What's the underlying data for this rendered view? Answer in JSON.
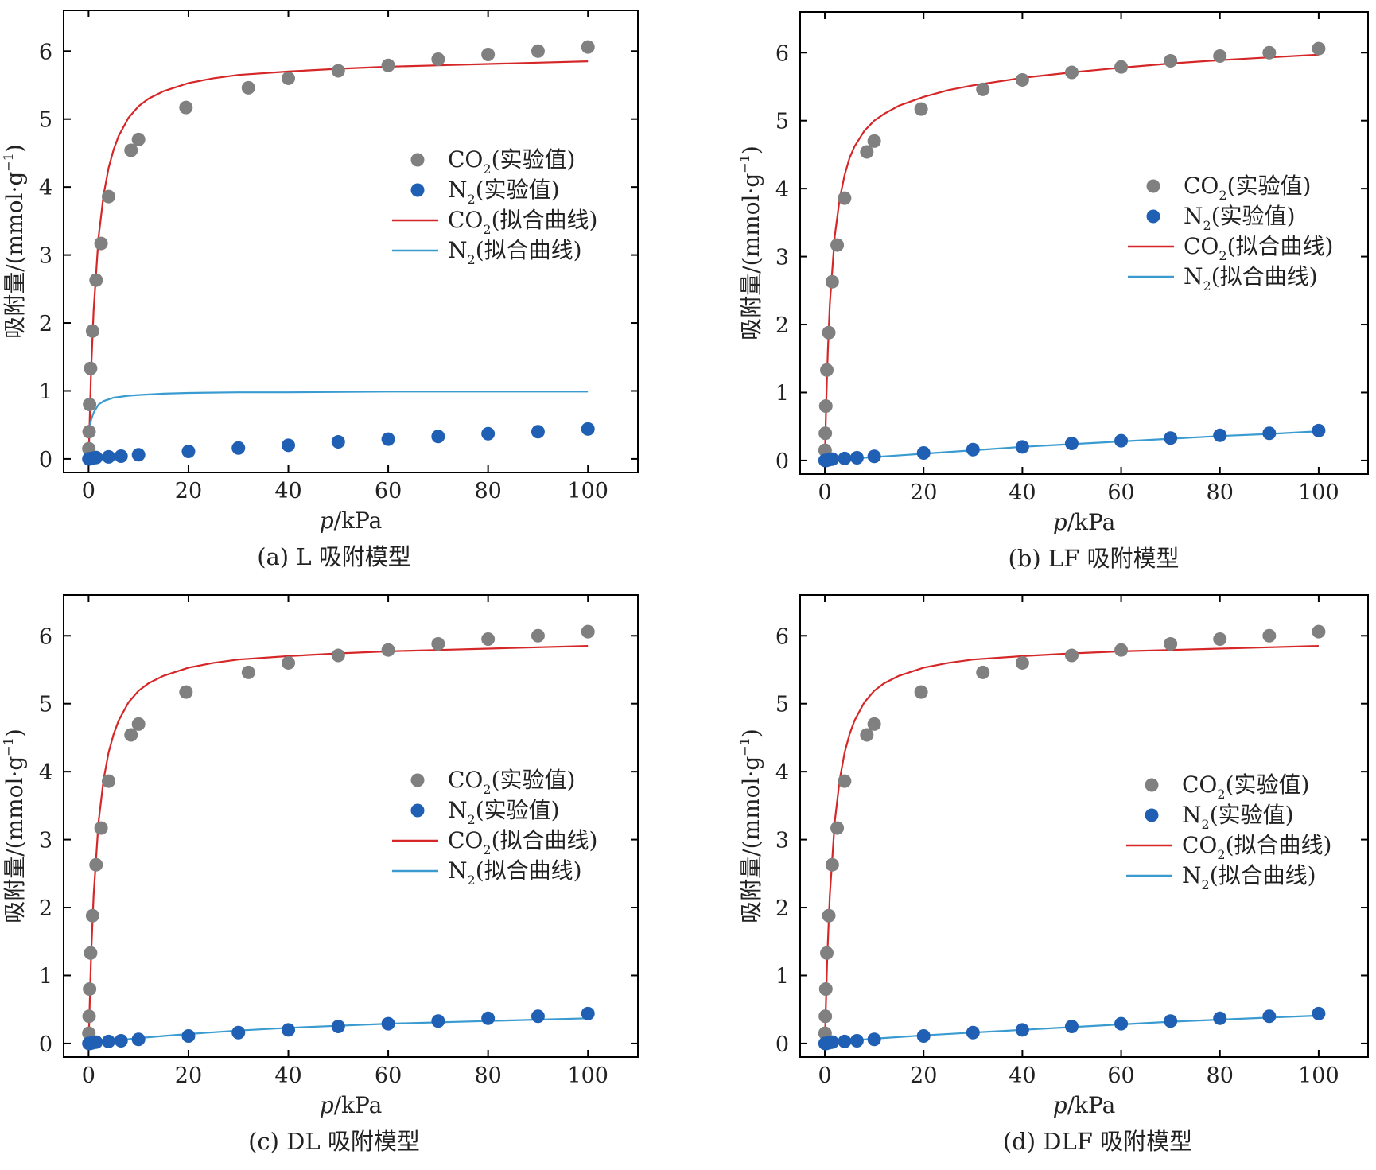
{
  "colors": {
    "co2_points": "#808080",
    "n2_points": "#1f5fb4",
    "co2_fit": "#d62728",
    "n2_fit": "#3a9bd0",
    "axis": "#000000"
  },
  "chart_data": [
    {
      "id": "a",
      "type": "scatter",
      "caption": "(a) L 吸附模型",
      "xlabel_italic": "p",
      "xlabel_unit": "/kPa",
      "ylabel": "吸附量/(mmol·g",
      "ylabel_sup": "−1",
      "ylabel_close": ")",
      "xlim": [
        -5,
        110
      ],
      "ylim": [
        -0.2,
        6.6
      ],
      "xticks": [
        0,
        20,
        40,
        60,
        80,
        100
      ],
      "yticks": [
        0,
        1,
        2,
        3,
        4,
        5,
        6
      ],
      "legend_position": "center-right",
      "series": [
        {
          "name": "CO",
          "sub": "2",
          "suffix": "(实验值)",
          "kind": "points",
          "color_key": "co2_points",
          "x": [
            0.05,
            0.1,
            0.2,
            0.4,
            0.8,
            1.5,
            2.5,
            4,
            8.5,
            10,
            19.5,
            32,
            40,
            50,
            60,
            70,
            80,
            90,
            100
          ],
          "y": [
            0.15,
            0.4,
            0.8,
            1.33,
            1.88,
            2.63,
            3.17,
            3.86,
            4.54,
            4.7,
            5.17,
            5.46,
            5.6,
            5.71,
            5.79,
            5.88,
            5.95,
            6.0,
            6.06
          ]
        },
        {
          "name": "N",
          "sub": "2",
          "suffix": "(实验值)",
          "kind": "points",
          "color_key": "n2_points",
          "x": [
            0.05,
            0.3,
            0.8,
            1.5,
            4,
            6.5,
            10,
            20,
            30,
            40,
            50,
            60,
            70,
            80,
            90,
            100
          ],
          "y": [
            0.0,
            0.0,
            0.01,
            0.02,
            0.03,
            0.04,
            0.06,
            0.11,
            0.16,
            0.2,
            0.25,
            0.29,
            0.33,
            0.37,
            0.4,
            0.44
          ]
        },
        {
          "name": "CO",
          "sub": "2",
          "suffix": "(拟合曲线)",
          "kind": "line",
          "color_key": "co2_fit",
          "x": [
            0,
            0.5,
            1,
            2,
            3,
            4,
            5,
            6,
            8,
            10,
            12,
            15,
            20,
            25,
            30,
            40,
            50,
            60,
            70,
            80,
            90,
            100
          ],
          "y": [
            0,
            1.28,
            2.18,
            3.26,
            3.88,
            4.28,
            4.55,
            4.75,
            5.02,
            5.19,
            5.3,
            5.41,
            5.53,
            5.6,
            5.65,
            5.7,
            5.74,
            5.77,
            5.79,
            5.81,
            5.83,
            5.85
          ]
        },
        {
          "name": "N",
          "sub": "2",
          "suffix": "(拟合曲线)",
          "kind": "line",
          "color_key": "n2_fit",
          "x": [
            0.05,
            0.2,
            0.5,
            1,
            2,
            3,
            5,
            8,
            10,
            15,
            20,
            30,
            40,
            60,
            80,
            100
          ],
          "y": [
            0.36,
            0.45,
            0.57,
            0.68,
            0.8,
            0.85,
            0.9,
            0.93,
            0.94,
            0.96,
            0.97,
            0.98,
            0.98,
            0.99,
            0.99,
            0.99
          ]
        }
      ]
    },
    {
      "id": "b",
      "type": "scatter",
      "caption": "(b) LF 吸附模型",
      "xlabel_italic": "p",
      "xlabel_unit": "/kPa",
      "ylabel": "吸附量/(mmol·g",
      "ylabel_sup": "−1",
      "ylabel_close": ")",
      "xlim": [
        -5,
        110
      ],
      "ylim": [
        -0.2,
        6.6
      ],
      "xticks": [
        0,
        20,
        40,
        60,
        80,
        100
      ],
      "yticks": [
        0,
        1,
        2,
        3,
        4,
        5,
        6
      ],
      "legend_position": "center-right",
      "series": [
        {
          "name": "CO",
          "sub": "2",
          "suffix": "(实验值)",
          "kind": "points",
          "color_key": "co2_points",
          "x": [
            0.05,
            0.1,
            0.2,
            0.4,
            0.8,
            1.5,
            2.5,
            4,
            8.5,
            10,
            19.5,
            32,
            40,
            50,
            60,
            70,
            80,
            90,
            100
          ],
          "y": [
            0.15,
            0.4,
            0.8,
            1.33,
            1.88,
            2.63,
            3.17,
            3.86,
            4.54,
            4.7,
            5.17,
            5.46,
            5.6,
            5.71,
            5.79,
            5.88,
            5.95,
            6.0,
            6.06
          ]
        },
        {
          "name": "N",
          "sub": "2",
          "suffix": "(实验值)",
          "kind": "points",
          "color_key": "n2_points",
          "x": [
            0.05,
            0.3,
            0.8,
            1.5,
            4,
            6.5,
            10,
            20,
            30,
            40,
            50,
            60,
            70,
            80,
            90,
            100
          ],
          "y": [
            0.0,
            0.0,
            0.01,
            0.02,
            0.03,
            0.04,
            0.06,
            0.11,
            0.16,
            0.2,
            0.25,
            0.29,
            0.33,
            0.37,
            0.4,
            0.44
          ]
        },
        {
          "name": "CO",
          "sub": "2",
          "suffix": "(拟合曲线)",
          "kind": "line",
          "color_key": "co2_fit",
          "x": [
            0,
            0.3,
            0.6,
            1,
            2,
            3,
            4,
            5,
            6,
            8,
            10,
            12,
            15,
            20,
            25,
            30,
            40,
            50,
            60,
            70,
            80,
            90,
            100
          ],
          "y": [
            0,
            0.9,
            1.6,
            2.3,
            3.3,
            3.85,
            4.2,
            4.45,
            4.62,
            4.85,
            5.0,
            5.1,
            5.22,
            5.35,
            5.45,
            5.52,
            5.63,
            5.71,
            5.78,
            5.84,
            5.89,
            5.93,
            5.97
          ]
        },
        {
          "name": "N",
          "sub": "2",
          "suffix": "(拟合曲线)",
          "kind": "line",
          "color_key": "n2_fit",
          "x": [
            0,
            5,
            10,
            20,
            30,
            40,
            50,
            60,
            70,
            80,
            90,
            100
          ],
          "y": [
            0,
            0.025,
            0.05,
            0.1,
            0.15,
            0.2,
            0.24,
            0.28,
            0.32,
            0.36,
            0.39,
            0.43
          ]
        }
      ]
    },
    {
      "id": "c",
      "type": "scatter",
      "caption": "(c) DL 吸附模型",
      "xlabel_italic": "p",
      "xlabel_unit": "/kPa",
      "ylabel": "吸附量/(mmol·g",
      "ylabel_sup": "−1",
      "ylabel_close": ")",
      "xlim": [
        -5,
        110
      ],
      "ylim": [
        -0.2,
        6.6
      ],
      "xticks": [
        0,
        20,
        40,
        60,
        80,
        100
      ],
      "yticks": [
        0,
        1,
        2,
        3,
        4,
        5,
        6
      ],
      "legend_position": "center-right",
      "series": [
        {
          "name": "CO",
          "sub": "2",
          "suffix": "(实验值)",
          "kind": "points",
          "color_key": "co2_points",
          "x": [
            0.05,
            0.1,
            0.2,
            0.4,
            0.8,
            1.5,
            2.5,
            4,
            8.5,
            10,
            19.5,
            32,
            40,
            50,
            60,
            70,
            80,
            90,
            100
          ],
          "y": [
            0.15,
            0.4,
            0.8,
            1.33,
            1.88,
            2.63,
            3.17,
            3.86,
            4.54,
            4.7,
            5.17,
            5.46,
            5.6,
            5.71,
            5.79,
            5.88,
            5.95,
            6.0,
            6.06
          ]
        },
        {
          "name": "N",
          "sub": "2",
          "suffix": "(实验值)",
          "kind": "points",
          "color_key": "n2_points",
          "x": [
            0.05,
            0.3,
            0.8,
            1.5,
            4,
            6.5,
            10,
            20,
            30,
            40,
            50,
            60,
            70,
            80,
            90,
            100
          ],
          "y": [
            0.0,
            0.0,
            0.01,
            0.02,
            0.03,
            0.04,
            0.06,
            0.11,
            0.16,
            0.2,
            0.25,
            0.29,
            0.33,
            0.37,
            0.4,
            0.44
          ]
        },
        {
          "name": "CO",
          "sub": "2",
          "suffix": "(拟合曲线)",
          "kind": "line",
          "color_key": "co2_fit",
          "x": [
            0,
            0.5,
            1,
            2,
            3,
            4,
            5,
            6,
            8,
            10,
            12,
            15,
            20,
            25,
            30,
            40,
            50,
            60,
            70,
            80,
            90,
            100
          ],
          "y": [
            0,
            1.28,
            2.18,
            3.26,
            3.88,
            4.28,
            4.55,
            4.75,
            5.02,
            5.19,
            5.3,
            5.41,
            5.53,
            5.6,
            5.65,
            5.7,
            5.74,
            5.77,
            5.79,
            5.81,
            5.83,
            5.85
          ]
        },
        {
          "name": "N",
          "sub": "2",
          "suffix": "(拟合曲线)",
          "kind": "line",
          "color_key": "n2_fit",
          "x": [
            0,
            2,
            5,
            10,
            15,
            20,
            30,
            40,
            50,
            60,
            70,
            80,
            90,
            100
          ],
          "y": [
            0,
            0.02,
            0.04,
            0.08,
            0.11,
            0.14,
            0.19,
            0.23,
            0.26,
            0.29,
            0.31,
            0.33,
            0.35,
            0.37
          ]
        }
      ]
    },
    {
      "id": "d",
      "type": "scatter",
      "caption": "(d) DLF 吸附模型",
      "xlabel_italic": "p",
      "xlabel_unit": "/kPa",
      "ylabel": "吸附量/(mmol·g",
      "ylabel_sup": "−1",
      "ylabel_close": ")",
      "xlim": [
        -5,
        110
      ],
      "ylim": [
        -0.2,
        6.6
      ],
      "xticks": [
        0,
        20,
        40,
        60,
        80,
        100
      ],
      "yticks": [
        0,
        1,
        2,
        3,
        4,
        5,
        6
      ],
      "legend_position": "center-right",
      "series": [
        {
          "name": "CO",
          "sub": "2",
          "suffix": "(实验值)",
          "kind": "points",
          "color_key": "co2_points",
          "x": [
            0.05,
            0.1,
            0.2,
            0.4,
            0.8,
            1.5,
            2.5,
            4,
            8.5,
            10,
            19.5,
            32,
            40,
            50,
            60,
            70,
            80,
            90,
            100
          ],
          "y": [
            0.15,
            0.4,
            0.8,
            1.33,
            1.88,
            2.63,
            3.17,
            3.86,
            4.54,
            4.7,
            5.17,
            5.46,
            5.6,
            5.71,
            5.79,
            5.88,
            5.95,
            6.0,
            6.06
          ]
        },
        {
          "name": "N",
          "sub": "2",
          "suffix": "(实验值)",
          "kind": "points",
          "color_key": "n2_points",
          "x": [
            0.05,
            0.3,
            0.8,
            1.5,
            4,
            6.5,
            10,
            20,
            30,
            40,
            50,
            60,
            70,
            80,
            90,
            100
          ],
          "y": [
            0.0,
            0.0,
            0.01,
            0.02,
            0.03,
            0.04,
            0.06,
            0.11,
            0.16,
            0.2,
            0.25,
            0.29,
            0.33,
            0.37,
            0.4,
            0.44
          ]
        },
        {
          "name": "CO",
          "sub": "2",
          "suffix": "(拟合曲线)",
          "kind": "line",
          "color_key": "co2_fit",
          "x": [
            0,
            0.5,
            1,
            2,
            3,
            4,
            5,
            6,
            8,
            10,
            12,
            15,
            20,
            25,
            30,
            40,
            50,
            60,
            70,
            80,
            90,
            100
          ],
          "y": [
            0,
            1.28,
            2.18,
            3.26,
            3.88,
            4.28,
            4.55,
            4.75,
            5.02,
            5.19,
            5.3,
            5.41,
            5.53,
            5.6,
            5.65,
            5.7,
            5.74,
            5.77,
            5.79,
            5.81,
            5.83,
            5.85
          ]
        },
        {
          "name": "N",
          "sub": "2",
          "suffix": "(拟合曲线)",
          "kind": "line",
          "color_key": "n2_fit",
          "x": [
            0,
            5,
            10,
            20,
            30,
            40,
            50,
            60,
            70,
            80,
            90,
            100
          ],
          "y": [
            0,
            0.04,
            0.07,
            0.12,
            0.16,
            0.2,
            0.24,
            0.28,
            0.32,
            0.35,
            0.38,
            0.41
          ]
        }
      ]
    }
  ]
}
